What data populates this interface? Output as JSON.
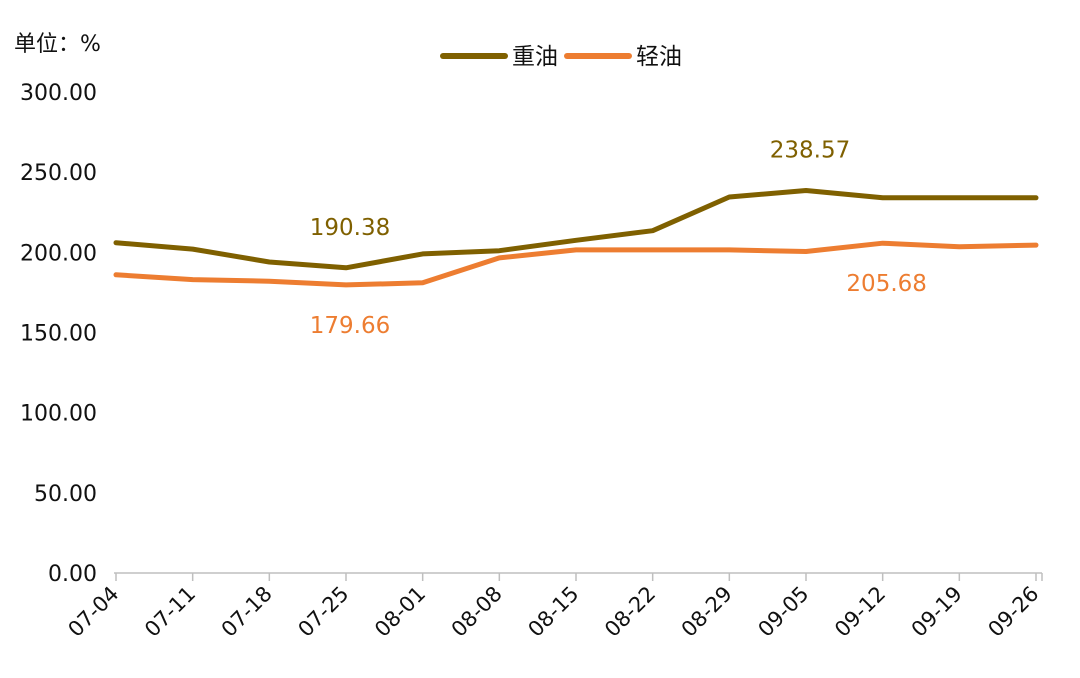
{
  "chart_data": {
    "type": "line",
    "unit_label": "单位：%",
    "categories": [
      "07-04",
      "07-11",
      "07-18",
      "07-25",
      "08-01",
      "08-08",
      "08-15",
      "08-22",
      "08-29",
      "09-05",
      "09-12",
      "09-19",
      "09-26"
    ],
    "ylim": [
      0,
      300
    ],
    "yticks": [
      "0.00",
      "50.00",
      "100.00",
      "150.00",
      "200.00",
      "250.00",
      "300.00"
    ],
    "legend_position": "top-center",
    "series": [
      {
        "name": "重油",
        "color": "#7f6000",
        "values": [
          206,
          202,
          194,
          190.38,
          199,
          201,
          207.5,
          213.5,
          234.5,
          238.57,
          234,
          234,
          234
        ]
      },
      {
        "name": "轻油",
        "color": "#ed7d31",
        "values": [
          186,
          183,
          182,
          179.66,
          181,
          196.5,
          201.5,
          201.5,
          201.5,
          200.5,
          205.68,
          203.5,
          204.5
        ]
      }
    ],
    "annotations": [
      {
        "text": "190.38",
        "series": 0,
        "index": 3,
        "color": "#7f6000"
      },
      {
        "text": "179.66",
        "series": 1,
        "index": 3,
        "color": "#ed7d31"
      },
      {
        "text": "238.57",
        "series": 0,
        "index": 9,
        "color": "#7f6000"
      },
      {
        "text": "205.68",
        "series": 1,
        "index": 10,
        "color": "#ed7d31"
      }
    ]
  }
}
